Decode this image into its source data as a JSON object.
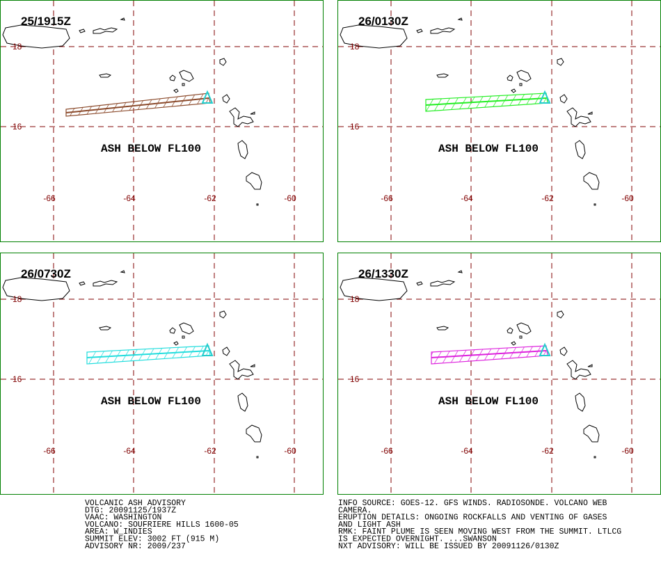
{
  "panels": [
    {
      "time": "25/1915Z",
      "label": "ASH BELOW FL100",
      "color": "#8b4a2b"
    },
    {
      "time": "26/0130Z",
      "label": "ASH BELOW FL100",
      "color": "#22ee22"
    },
    {
      "time": "26/0730Z",
      "label": "ASH BELOW FL100",
      "color": "#22dddd"
    },
    {
      "time": "26/1330Z",
      "label": "ASH BELOW FL100",
      "color": "#dd22dd"
    }
  ],
  "lon_labels": [
    "-66",
    "-64",
    "-62",
    "-60"
  ],
  "lat_labels": [
    "18",
    "16"
  ],
  "advisory_left": [
    "VOLCANIC ASH ADVISORY",
    "DTG: 20091125/1937Z",
    "VAAC: WASHINGTON",
    "VOLCANO: SOUFRIERE HILLS 1600-05",
    "AREA: W_INDIES",
    "SUMMIT ELEV: 3002 FT (915 M)",
    "ADVISORY NR: 2009/237"
  ],
  "advisory_right": [
    "INFO SOURCE: GOES-12. GFS WINDS. RADIOSONDE. VOLCANO WEB",
    "CAMERA.",
    "ERUPTION DETAILS: ONGOING ROCKFALLS AND VENTING OF GASES",
    "AND LIGHT ASH",
    "RMK: FAINT PLUME IS SEEN MOVING WEST FROM THE SUMMIT. LTLCG",
    "IS EXPECTED OVERNIGHT. ...SWANSON",
    "NXT ADVISORY: WILL BE ISSUED BY 20091126/0130Z"
  ]
}
